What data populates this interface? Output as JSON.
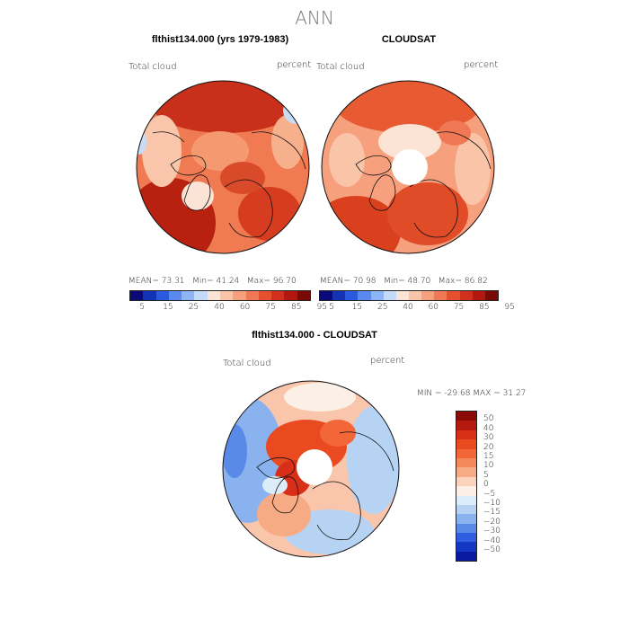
{
  "title": "ANN",
  "panel1": {
    "heading": "flthist134.000 (yrs 1979-1983)",
    "variable": "Total cloud",
    "units": "percent",
    "mean_label": "MEAN=",
    "mean": "73.31",
    "min_label": "Min=",
    "min": "41.24",
    "max_label": "Max=",
    "max": "96.70"
  },
  "panel2": {
    "heading": "CLOUDSAT",
    "variable": "Total cloud",
    "units": "percent",
    "mean_label": "MEAN=",
    "mean": "70.98",
    "min_label": "Min=",
    "min": "48.70",
    "max_label": "Max=",
    "max": "86.82"
  },
  "panel3": {
    "heading": "flthist134.000 - CLOUDSAT",
    "variable": "Total cloud",
    "units": "percent",
    "range_text": "MIN = -29.68 MAX =  31.27"
  },
  "abs_colorbar": {
    "labels": [
      "5",
      "15",
      "25",
      "40",
      "60",
      "75",
      "85",
      "95"
    ],
    "colors": [
      "#0a0a78",
      "#1432b4",
      "#2a5ae0",
      "#5a8af0",
      "#8fb4f5",
      "#c4daf8",
      "#fbe4d6",
      "#f9c4a8",
      "#f6a07e",
      "#f07854",
      "#e6502e",
      "#d2301c",
      "#b01810",
      "#7a0a06"
    ]
  },
  "diff_colorbar": {
    "labels": [
      "50",
      "40",
      "30",
      "20",
      "15",
      "10",
      "5",
      "0",
      "−5",
      "−10",
      "−15",
      "−20",
      "−30",
      "−40",
      "−50"
    ],
    "colors": [
      "#8a0a06",
      "#b41a0e",
      "#d83018",
      "#ea4a20",
      "#f26638",
      "#f48a5c",
      "#f7ab85",
      "#fbd2bb",
      "#fbefe6",
      "#dcecf9",
      "#b6d3f4",
      "#8ab2ee",
      "#5a8ae8",
      "#2f5ee0",
      "#1636c4",
      "#0a1aa0"
    ]
  }
}
